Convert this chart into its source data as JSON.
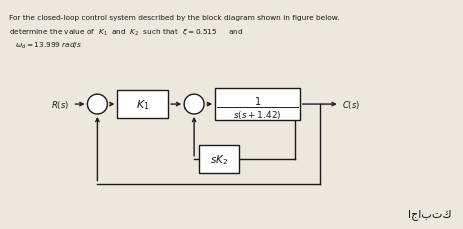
{
  "bg_color": "#ede8dd",
  "text_color": "#1a1a1a",
  "title_line1": "For the closed-loop control system described by the block diagram shown in figure below.",
  "title_line2": "determine the value of  $K_1$  and  $K_2$  such that  $\\xi = 0.515$     and",
  "title_line3": "$\\omega_d = 13.999\\;rad/s$",
  "arabic_text": "اجابتك",
  "R_label": "$R(s)$",
  "C_label": "$C(s)$",
  "K1_label": "$K_1$",
  "K2_label": "$sK_2$",
  "plant_num": "$1$",
  "plant_den": "$s(s+1.42)$",
  "figsize": [
    4.64,
    2.3
  ],
  "dpi": 100
}
